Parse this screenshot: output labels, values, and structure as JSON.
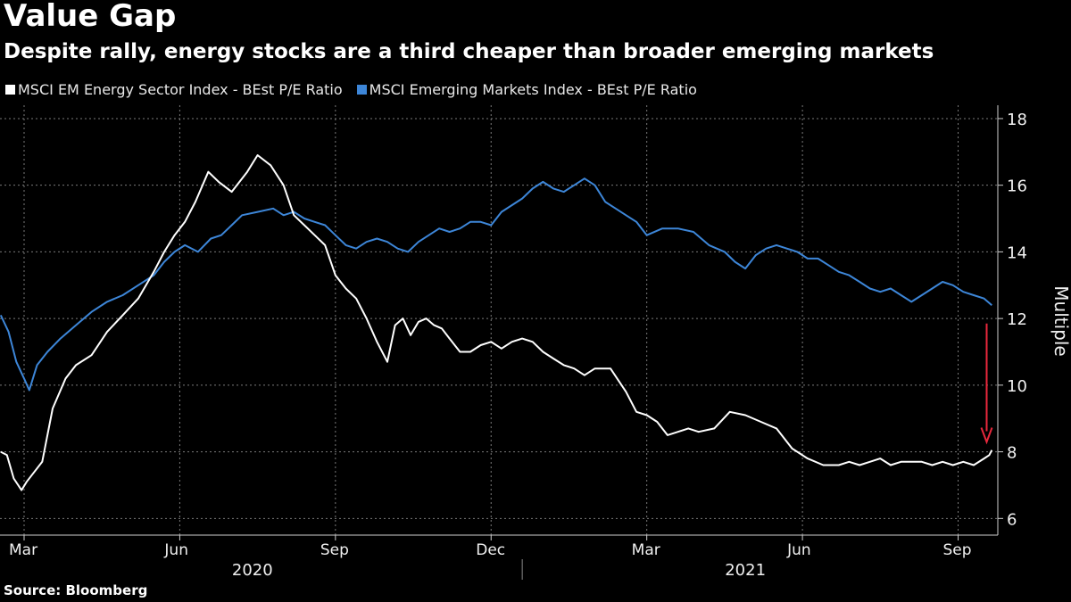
{
  "chart_data": {
    "type": "line",
    "title": "Value Gap",
    "subtitle": "Despite rally, energy stocks are a third cheaper than broader emerging markets",
    "ylabel": "Multiple",
    "ylim": [
      5.5,
      18.4
    ],
    "yticks": [
      6,
      8,
      10,
      12,
      14,
      16,
      18
    ],
    "month_ticks": [
      "Mar",
      "Jun",
      "Sep",
      "Dec",
      "Mar",
      "Jun",
      "Sep"
    ],
    "month_tick_index": [
      0,
      3,
      6,
      9,
      12,
      15,
      18
    ],
    "years": [
      {
        "label": "2020",
        "center_index": 4.4
      },
      {
        "label": "2021",
        "center_index": 13.9
      }
    ],
    "year_separator_index": 9.6,
    "xlim": [
      -0.45,
      19.0
    ],
    "x_labels": [
      "2020-03",
      "2020-04",
      "2020-05",
      "2020-06",
      "2020-07",
      "2020-08",
      "2020-09",
      "2020-10",
      "2020-11",
      "2020-12",
      "2021-01",
      "2021-02",
      "2021-03",
      "2021-04",
      "2021-05",
      "2021-06",
      "2021-07",
      "2021-08",
      "2021-09"
    ],
    "series": [
      {
        "name": "MSCI EM Energy Sector Index - BEst P/E Ratio",
        "color": "#ffffff",
        "x": [
          -0.45,
          -0.33,
          -0.2,
          -0.05,
          0.05,
          0.15,
          0.35,
          0.55,
          0.8,
          1.0,
          1.3,
          1.6,
          1.9,
          2.2,
          2.5,
          2.7,
          2.9,
          3.1,
          3.3,
          3.55,
          3.75,
          4.0,
          4.3,
          4.5,
          4.75,
          5.0,
          5.2,
          5.4,
          5.6,
          5.8,
          6.0,
          6.2,
          6.4,
          6.6,
          6.8,
          7.0,
          7.15,
          7.3,
          7.45,
          7.6,
          7.75,
          7.9,
          8.05,
          8.2,
          8.4,
          8.6,
          8.8,
          9.0,
          9.2,
          9.4,
          9.6,
          9.8,
          10.0,
          10.2,
          10.4,
          10.6,
          10.8,
          11.0,
          11.3,
          11.6,
          11.8,
          12.0,
          12.2,
          12.4,
          12.6,
          12.8,
          13.0,
          13.3,
          13.6,
          13.9,
          14.2,
          14.5,
          14.8,
          15.1,
          15.4,
          15.7,
          15.9,
          16.1,
          16.3,
          16.5,
          16.7,
          16.9,
          17.1,
          17.3,
          17.5,
          17.7,
          17.9,
          18.1,
          18.3,
          18.5,
          18.6,
          18.65
        ],
        "y": [
          8.0,
          7.9,
          7.2,
          6.85,
          7.1,
          7.3,
          7.7,
          9.3,
          10.2,
          10.6,
          10.9,
          11.6,
          12.1,
          12.6,
          13.4,
          14.0,
          14.5,
          14.9,
          15.5,
          16.4,
          16.1,
          15.8,
          16.4,
          16.9,
          16.6,
          16.0,
          15.1,
          14.8,
          14.5,
          14.2,
          13.3,
          12.9,
          12.6,
          12.0,
          11.3,
          10.7,
          11.8,
          12.0,
          11.5,
          11.9,
          12.0,
          11.8,
          11.7,
          11.4,
          11.0,
          11.0,
          11.2,
          11.3,
          11.1,
          11.3,
          11.4,
          11.3,
          11.0,
          10.8,
          10.6,
          10.5,
          10.3,
          10.5,
          10.5,
          9.8,
          9.2,
          9.1,
          8.9,
          8.5,
          8.6,
          8.7,
          8.6,
          8.7,
          9.2,
          9.1,
          8.9,
          8.7,
          8.1,
          7.8,
          7.6,
          7.6,
          7.7,
          7.6,
          7.7,
          7.8,
          7.6,
          7.7,
          7.7,
          7.7,
          7.6,
          7.7,
          7.6,
          7.7,
          7.6,
          7.8,
          7.9,
          8.05
        ]
      },
      {
        "name": "MSCI Emerging Markets Index - BEst P/E Ratio",
        "color": "#3d86d8",
        "x": [
          -0.45,
          -0.3,
          -0.15,
          0.0,
          0.1,
          0.25,
          0.45,
          0.7,
          1.0,
          1.3,
          1.6,
          1.9,
          2.2,
          2.5,
          2.7,
          2.9,
          3.1,
          3.35,
          3.6,
          3.8,
          4.0,
          4.2,
          4.5,
          4.8,
          5.0,
          5.2,
          5.4,
          5.6,
          5.8,
          6.0,
          6.2,
          6.4,
          6.6,
          6.8,
          7.0,
          7.2,
          7.4,
          7.6,
          7.8,
          8.0,
          8.2,
          8.4,
          8.6,
          8.8,
          9.0,
          9.2,
          9.4,
          9.6,
          9.8,
          10.0,
          10.2,
          10.4,
          10.6,
          10.8,
          11.0,
          11.2,
          11.4,
          11.6,
          11.8,
          12.0,
          12.3,
          12.6,
          12.9,
          13.2,
          13.5,
          13.7,
          13.9,
          14.1,
          14.3,
          14.5,
          14.7,
          14.9,
          15.1,
          15.3,
          15.5,
          15.7,
          15.9,
          16.1,
          16.3,
          16.5,
          16.7,
          16.9,
          17.1,
          17.3,
          17.5,
          17.7,
          17.9,
          18.1,
          18.3,
          18.5,
          18.65
        ],
        "y": [
          12.1,
          11.6,
          10.7,
          10.2,
          9.85,
          10.6,
          11.0,
          11.4,
          11.8,
          12.2,
          12.5,
          12.7,
          13.0,
          13.3,
          13.7,
          14.0,
          14.2,
          14.0,
          14.4,
          14.5,
          14.8,
          15.1,
          15.2,
          15.3,
          15.1,
          15.2,
          15.0,
          14.9,
          14.8,
          14.5,
          14.2,
          14.1,
          14.3,
          14.4,
          14.3,
          14.1,
          14.0,
          14.3,
          14.5,
          14.7,
          14.6,
          14.7,
          14.9,
          14.9,
          14.8,
          15.2,
          15.4,
          15.6,
          15.9,
          16.1,
          15.9,
          15.8,
          16.0,
          16.2,
          16.0,
          15.5,
          15.3,
          15.1,
          14.9,
          14.5,
          14.7,
          14.7,
          14.6,
          14.2,
          14.0,
          13.7,
          13.5,
          13.9,
          14.1,
          14.2,
          14.1,
          14.0,
          13.8,
          13.8,
          13.6,
          13.4,
          13.3,
          13.1,
          12.9,
          12.8,
          12.9,
          12.7,
          12.5,
          12.7,
          12.9,
          13.1,
          13.0,
          12.8,
          12.7,
          12.6,
          12.4
        ]
      }
    ],
    "annotation": {
      "type": "arrow",
      "color": "#e8283c",
      "x_index": 18.55,
      "from": 11.85,
      "to": 8.35
    }
  },
  "legend": {
    "energy_label": "MSCI EM Energy Sector Index - BEst P/E Ratio",
    "em_label": "MSCI Emerging Markets Index - BEst P/E Ratio"
  },
  "source": "Source: Bloomberg"
}
